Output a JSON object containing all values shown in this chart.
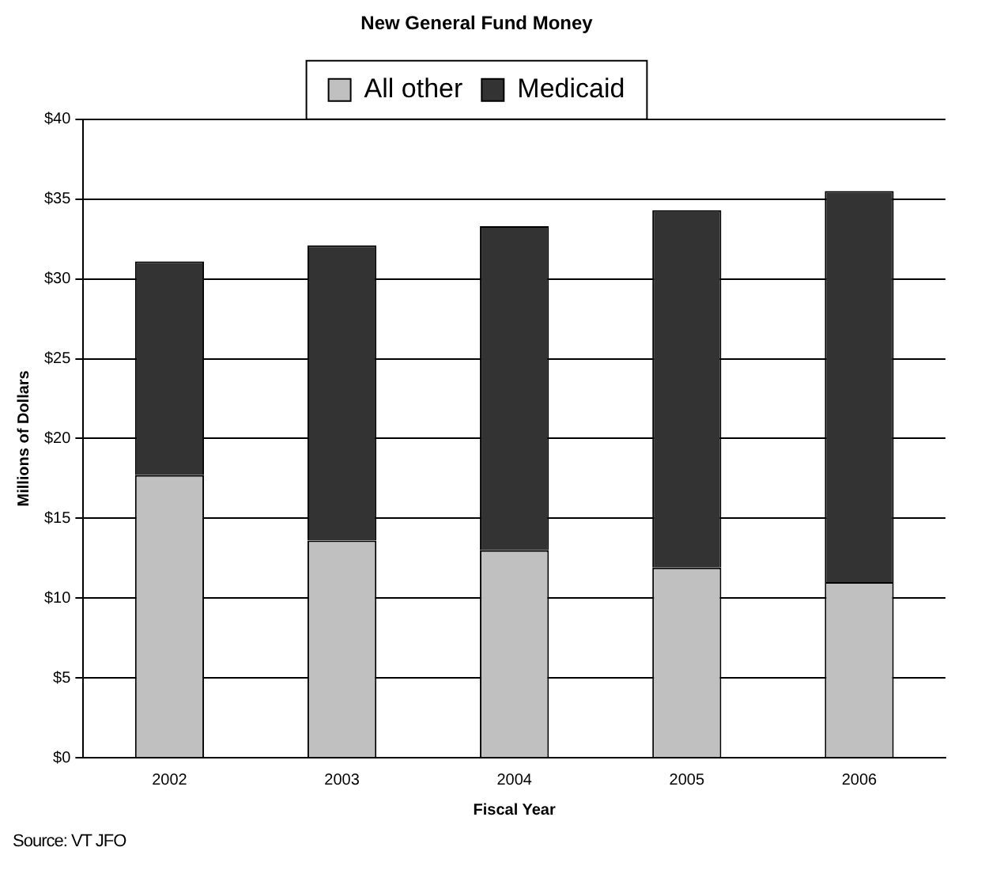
{
  "chart_data": {
    "type": "bar",
    "title": "New General Fund Money",
    "xlabel": "Fiscal Year",
    "ylabel": "Millions of Dollars",
    "annotations": [
      "Source: VT JFO"
    ],
    "categories": [
      "2002",
      "2003",
      "2004",
      "2005",
      "2006"
    ],
    "stacked": true,
    "series": [
      {
        "name": "All other",
        "color": "#c0c0c0",
        "values": [
          17.7,
          13.6,
          13.0,
          11.9,
          11.0
        ]
      },
      {
        "name": "Medicaid",
        "color": "#333333",
        "values": [
          13.4,
          18.5,
          20.3,
          22.4,
          24.5
        ]
      }
    ],
    "ylim": [
      0,
      40
    ],
    "yticks": [
      {
        "value": 0,
        "label": "$0"
      },
      {
        "value": 5,
        "label": "$5"
      },
      {
        "value": 10,
        "label": "$10"
      },
      {
        "value": 15,
        "label": "$15"
      },
      {
        "value": 20,
        "label": "$20"
      },
      {
        "value": 25,
        "label": "$25"
      },
      {
        "value": 30,
        "label": "$30"
      },
      {
        "value": 35,
        "label": "$35"
      },
      {
        "value": 40,
        "label": "$40"
      }
    ],
    "grid": "y",
    "legend": "top"
  }
}
